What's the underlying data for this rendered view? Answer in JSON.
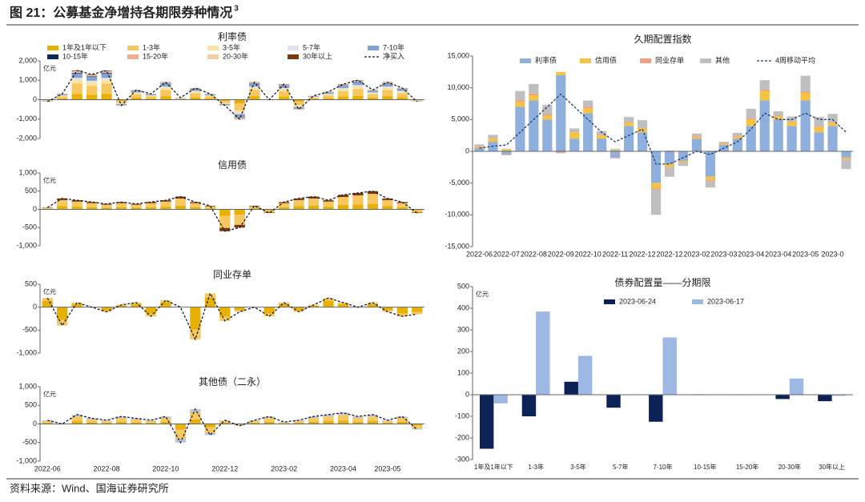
{
  "header": {
    "title": "图 21：公募基金净增持各期限券种情况",
    "superscript": "3"
  },
  "source": "资料来源：Wind、国海证券研究所",
  "chart_data": [
    {
      "type": "stacked_bar",
      "title": "利率债",
      "unit": "亿元",
      "legend": "top",
      "ylim": [
        -2000,
        2000
      ],
      "yticks": [
        {
          "value": -2000,
          "label": "-2,000"
        },
        {
          "value": -1000,
          "label": "-1,000"
        },
        0,
        {
          "value": 1000,
          "label": "1,000"
        },
        {
          "value": 2000,
          "label": "2,000"
        }
      ],
      "series": [
        {
          "name": "1年及1年以下",
          "color": "#e8b000",
          "values": [
            -20,
            60,
            300,
            260,
            300,
            -60,
            100,
            60,
            180,
            20,
            120,
            60,
            -60,
            -200,
            180,
            0,
            160,
            -100,
            40,
            80,
            160,
            200,
            100,
            180,
            120,
            -20
          ]
        },
        {
          "name": "1-3年",
          "color": "#f6c85f",
          "values": [
            -35,
            105,
            525,
            455,
            525,
            -105,
            175,
            105,
            315,
            35,
            210,
            105,
            -105,
            -350,
            315,
            0,
            280,
            -175,
            70,
            140,
            280,
            350,
            175,
            315,
            210,
            -35
          ]
        },
        {
          "name": "3-5年",
          "color": "#fbe3a4",
          "values": [
            -15,
            45,
            225,
            195,
            225,
            -45,
            75,
            45,
            135,
            15,
            90,
            45,
            -45,
            -150,
            135,
            0,
            120,
            -75,
            30,
            60,
            120,
            150,
            75,
            135,
            90,
            -15
          ]
        },
        {
          "name": "5-7年",
          "color": "#dde4f0",
          "values": [
            -5,
            15,
            75,
            65,
            75,
            -15,
            25,
            15,
            45,
            5,
            30,
            15,
            -15,
            -50,
            45,
            0,
            40,
            -25,
            10,
            20,
            40,
            50,
            25,
            45,
            30,
            -5
          ]
        },
        {
          "name": "7-10年",
          "color": "#7fa3d6",
          "values": [
            -15,
            45,
            225,
            195,
            225,
            -45,
            75,
            45,
            135,
            15,
            90,
            45,
            -45,
            -150,
            135,
            0,
            120,
            -75,
            30,
            60,
            120,
            150,
            75,
            135,
            90,
            -15
          ]
        },
        {
          "name": "10-15年",
          "color": "#0f2a5a",
          "values": [
            -2,
            6,
            30,
            26,
            30,
            -6,
            10,
            6,
            18,
            2,
            12,
            6,
            -6,
            -20,
            18,
            0,
            16,
            -10,
            4,
            8,
            16,
            20,
            10,
            18,
            12,
            -2
          ]
        },
        {
          "name": "15-20年",
          "color": "#f0b090",
          "values": [
            -2,
            6,
            30,
            26,
            30,
            -6,
            10,
            6,
            18,
            2,
            12,
            6,
            -6,
            -20,
            18,
            0,
            16,
            -10,
            4,
            8,
            16,
            20,
            10,
            18,
            12,
            -2
          ]
        },
        {
          "name": "20-30年",
          "color": "#f4cda8",
          "values": [
            -4,
            12,
            60,
            52,
            60,
            -12,
            20,
            12,
            36,
            4,
            24,
            12,
            -12,
            -40,
            36,
            0,
            32,
            -20,
            8,
            16,
            32,
            40,
            20,
            36,
            24,
            -4
          ]
        },
        {
          "name": "30年以上",
          "color": "#7a3a10",
          "values": [
            -2,
            6,
            30,
            26,
            30,
            -6,
            10,
            6,
            18,
            2,
            12,
            6,
            -6,
            -20,
            18,
            0,
            16,
            -10,
            4,
            8,
            16,
            20,
            10,
            18,
            12,
            -2
          ]
        },
        {
          "name": "净买入",
          "kind": "line",
          "dash": true,
          "color": "#1a1a2e",
          "values": [
            -100,
            300,
            1500,
            1300,
            1500,
            -300,
            500,
            300,
            900,
            100,
            600,
            300,
            -300,
            -1000,
            900,
            0,
            800,
            -500,
            200,
            400,
            800,
            1000,
            500,
            900,
            600,
            -100
          ]
        }
      ]
    },
    {
      "type": "stacked_bar",
      "title": "信用债",
      "unit": "亿元",
      "ylim": [
        -1000,
        1000
      ],
      "yticks": [
        {
          "value": -1000,
          "label": "-1,000"
        },
        -500,
        0,
        500,
        {
          "value": 1000,
          "label": "1,000"
        }
      ],
      "series": [
        {
          "color": "#e8b000",
          "values": [
            15,
            90,
            75,
            60,
            45,
            60,
            45,
            60,
            75,
            105,
            60,
            30,
            -180,
            -150,
            30,
            -30,
            60,
            90,
            105,
            75,
            120,
            135,
            150,
            90,
            60,
            -30
          ]
        },
        {
          "color": "#f6c85f",
          "values": [
            28,
            165,
            138,
            110,
            83,
            110,
            83,
            110,
            138,
            193,
            110,
            55,
            -330,
            -275,
            55,
            -55,
            110,
            165,
            193,
            138,
            220,
            248,
            275,
            165,
            110,
            -55
          ]
        },
        {
          "color": "#7a3a10",
          "values": [
            7,
            45,
            37,
            30,
            22,
            30,
            22,
            30,
            37,
            52,
            30,
            15,
            -90,
            -75,
            15,
            -15,
            30,
            45,
            52,
            37,
            60,
            67,
            75,
            45,
            30,
            -15
          ]
        },
        {
          "kind": "line",
          "dash": true,
          "color": "#1a1a2e",
          "values": [
            50,
            300,
            250,
            200,
            150,
            200,
            150,
            200,
            250,
            350,
            200,
            100,
            -600,
            -500,
            100,
            -100,
            200,
            300,
            350,
            250,
            400,
            450,
            500,
            300,
            200,
            -100
          ]
        }
      ]
    },
    {
      "type": "stacked_bar",
      "title": "同业存单",
      "unit": "亿元",
      "ylim": [
        -1000,
        500
      ],
      "yticks": [
        {
          "value": -1000,
          "label": "-1,000"
        },
        -500,
        0,
        500
      ],
      "series": [
        {
          "color": "#e8b000",
          "values": [
            140,
            -280,
            70,
            0,
            -70,
            35,
            70,
            -140,
            105,
            0,
            -490,
            210,
            -210,
            -70,
            0,
            -140,
            70,
            -70,
            35,
            140,
            70,
            0,
            70,
            -70,
            -140,
            -105
          ]
        },
        {
          "color": "#f6c85f",
          "values": [
            60,
            -120,
            30,
            0,
            -30,
            15,
            30,
            -60,
            45,
            0,
            -210,
            90,
            -90,
            -30,
            0,
            -60,
            30,
            -30,
            15,
            60,
            30,
            0,
            30,
            -30,
            -60,
            -45
          ]
        },
        {
          "kind": "line",
          "dash": true,
          "color": "#1a1a2e",
          "values": [
            200,
            -400,
            100,
            0,
            -100,
            50,
            100,
            -200,
            150,
            0,
            -700,
            300,
            -300,
            -100,
            0,
            -200,
            100,
            -100,
            50,
            200,
            100,
            0,
            100,
            -100,
            -200,
            -150
          ]
        }
      ]
    },
    {
      "type": "stacked_bar",
      "title": "其他债（二永）",
      "unit": "亿元",
      "ylim": [
        -1000,
        1000
      ],
      "yticks": [
        {
          "value": -1000,
          "label": "-1,000"
        },
        -500,
        0,
        500,
        {
          "value": 1000,
          "label": "1,000"
        }
      ],
      "categories": [
        "2022-06",
        null,
        null,
        null,
        "2022-08",
        null,
        null,
        null,
        "2022-10",
        null,
        null,
        null,
        "2022-12",
        null,
        null,
        null,
        "2023-02",
        null,
        null,
        null,
        "2023-04",
        null,
        null,
        "2023-05",
        null,
        null
      ],
      "series": [
        {
          "color": "#e8b000",
          "values": [
            30,
            0,
            75,
            45,
            30,
            60,
            45,
            30,
            60,
            -150,
            120,
            -90,
            30,
            -15,
            30,
            60,
            15,
            30,
            60,
            75,
            90,
            60,
            75,
            30,
            60,
            -45
          ]
        },
        {
          "color": "#f6c85f",
          "values": [
            50,
            0,
            125,
            75,
            50,
            100,
            75,
            50,
            100,
            -250,
            200,
            -150,
            50,
            -25,
            50,
            100,
            25,
            50,
            100,
            125,
            150,
            100,
            125,
            50,
            100,
            -75
          ]
        },
        {
          "color": "#b8c6dc",
          "values": [
            20,
            0,
            50,
            30,
            20,
            40,
            30,
            20,
            40,
            -100,
            80,
            -60,
            20,
            -10,
            20,
            40,
            10,
            20,
            40,
            50,
            60,
            40,
            50,
            20,
            40,
            -30
          ]
        },
        {
          "kind": "line",
          "dash": true,
          "color": "#1a1a2e",
          "values": [
            100,
            0,
            250,
            150,
            100,
            200,
            150,
            100,
            200,
            -500,
            400,
            -300,
            100,
            -50,
            100,
            200,
            50,
            100,
            200,
            250,
            300,
            200,
            250,
            100,
            200,
            -150
          ]
        }
      ]
    },
    {
      "type": "stacked_bar",
      "title": "久期配置指数",
      "legend": "top",
      "ylim": [
        -15000,
        15000
      ],
      "yticks": [
        {
          "value": -15000,
          "label": "-15,000"
        },
        {
          "value": -10000,
          "label": "-10,000"
        },
        {
          "value": -5000,
          "label": "-5,000"
        },
        0,
        {
          "value": 5000,
          "label": "5,000"
        },
        {
          "value": 10000,
          "label": "10,000"
        },
        {
          "value": 15000,
          "label": "15,000"
        }
      ],
      "categories": [
        "2022-06",
        null,
        "2022-07",
        null,
        "2022-08",
        null,
        "2022-09",
        null,
        "2022-10",
        null,
        "2022-11",
        null,
        "2022-12",
        null,
        "2022-12",
        null,
        "2023-02",
        null,
        "2023-03",
        null,
        "2023-04",
        null,
        "2023-04",
        null,
        "2023-05",
        null,
        "2023-0",
        null
      ],
      "series": [
        {
          "name": "利率债",
          "color": "#8fb0dd",
          "values": [
            500,
            1500,
            -500,
            7000,
            8000,
            5000,
            12000,
            2000,
            6000,
            2000,
            -1000,
            4000,
            3000,
            -5000,
            -2000,
            -1500,
            2000,
            -4000,
            1000,
            2000,
            4000,
            8000,
            5000,
            4000,
            8000,
            3000,
            4000,
            -1000
          ]
        },
        {
          "name": "信用债",
          "color": "#f6c340",
          "values": [
            200,
            500,
            300,
            800,
            800,
            600,
            500,
            1000,
            800,
            500,
            200,
            500,
            600,
            -800,
            -500,
            -200,
            300,
            -500,
            200,
            300,
            1000,
            1500,
            500,
            600,
            1200,
            800,
            500,
            -200
          ]
        },
        {
          "name": "同业存单",
          "color": "#f0a080",
          "values": [
            100,
            100,
            -100,
            200,
            300,
            200,
            -200,
            100,
            200,
            100,
            -100,
            100,
            100,
            -200,
            100,
            -100,
            100,
            -200,
            100,
            100,
            200,
            200,
            100,
            100,
            200,
            100,
            100,
            -100
          ]
        },
        {
          "name": "其他",
          "color": "#bfbfbf",
          "values": [
            300,
            500,
            100,
            1500,
            1500,
            1500,
            -100,
            500,
            1000,
            600,
            200,
            800,
            1200,
            -4000,
            -1500,
            -500,
            400,
            -1000,
            200,
            500,
            1500,
            1500,
            700,
            800,
            2500,
            1500,
            1300,
            -1500
          ]
        },
        {
          "name": "4周移动平均",
          "kind": "line",
          "dash": true,
          "color": "#1f3a7a",
          "values": [
            500,
            800,
            1000,
            3000,
            5000,
            7000,
            9000,
            7000,
            5000,
            3000,
            1500,
            2500,
            3500,
            -2000,
            -2000,
            -1000,
            0,
            -500,
            500,
            1500,
            3500,
            6000,
            5000,
            5000,
            6000,
            5000,
            5000,
            3000
          ]
        }
      ]
    },
    {
      "type": "grouped_bar",
      "title": "债券配置量——分期限",
      "unit": "亿元",
      "legend": "top",
      "ylim": [
        -300,
        500
      ],
      "yticks": [
        -300,
        -200,
        -100,
        0,
        100,
        200,
        300,
        400,
        500
      ],
      "categories": [
        "1年及1年以下",
        "1-3年",
        "3-5年",
        "5-7年",
        "7-10年",
        "10-15年",
        "15-20年",
        "20-30年",
        "30年以上"
      ],
      "series": [
        {
          "name": "2023-06-24",
          "color": "#0c2155",
          "values": [
            -250,
            -100,
            60,
            -60,
            -125,
            -2,
            -2,
            -20,
            -30
          ]
        },
        {
          "name": "2023-06-17",
          "color": "#9db9e3",
          "values": [
            -40,
            385,
            180,
            0,
            265,
            0,
            0,
            75,
            -5
          ]
        }
      ]
    }
  ]
}
